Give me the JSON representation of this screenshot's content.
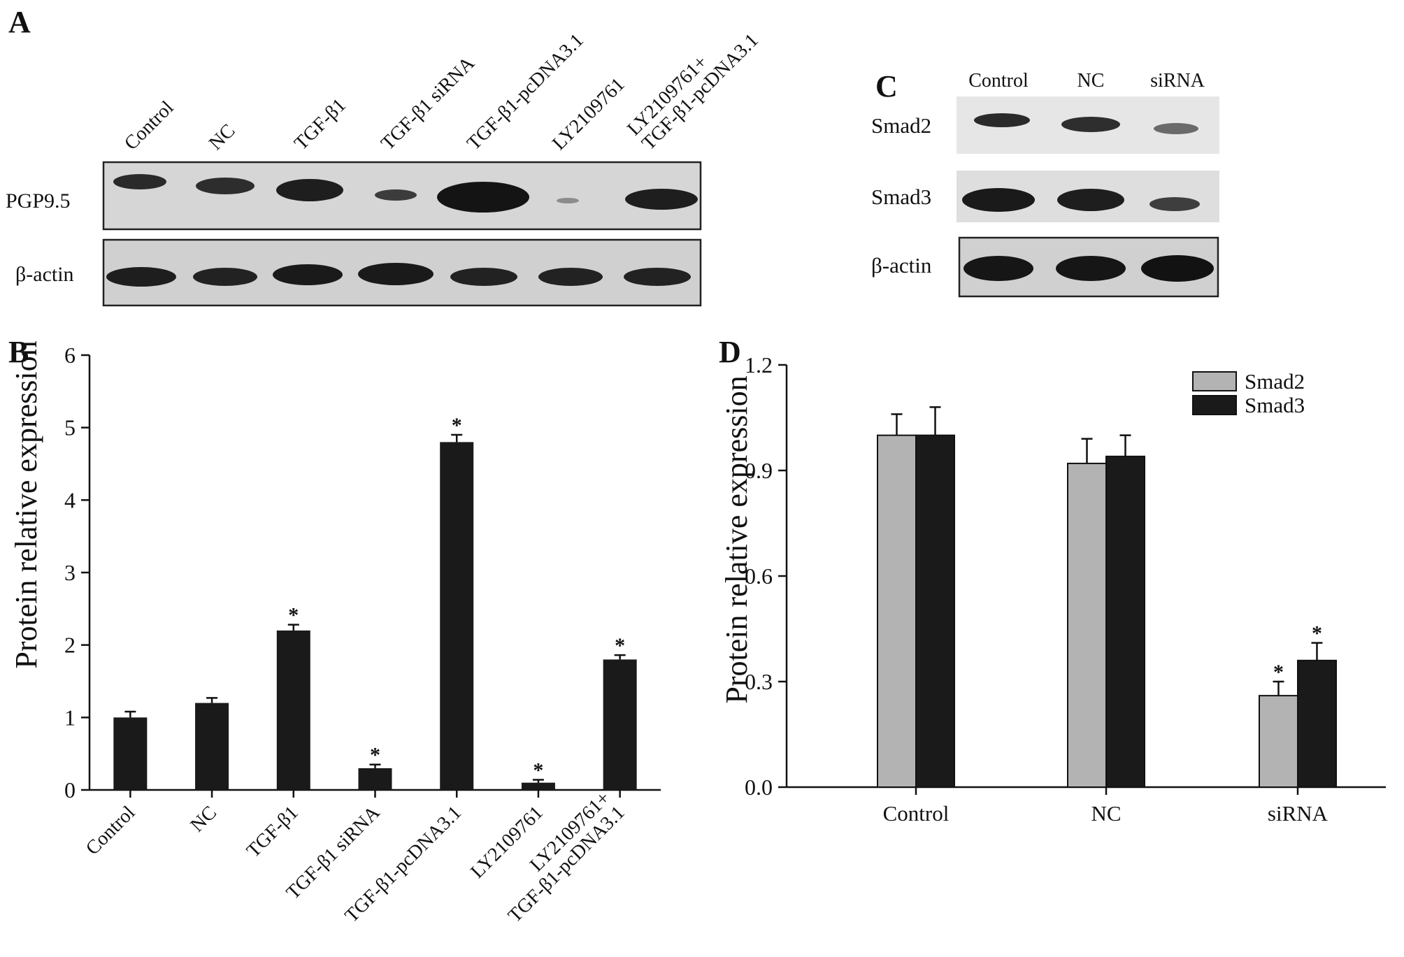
{
  "panels": {
    "A": {
      "letter": "A",
      "lanes": [
        "Control",
        "NC",
        "TGF-β1",
        "TGF-β1 siRNA",
        "TGF-β1-pcDNA3.1",
        "LY2109761",
        [
          "LY2109761+",
          "TGF-β1-pcDNA3.1"
        ]
      ],
      "rows": [
        "PGP9.5",
        "β-actin"
      ]
    },
    "C": {
      "letter": "C",
      "lanes": [
        "Control",
        "NC",
        "siRNA"
      ],
      "rows": [
        "Smad2",
        "Smad3",
        "β-actin"
      ]
    }
  },
  "chart_data": [
    {
      "panel": "B",
      "type": "bar",
      "ylabel": "Protein relative expression",
      "categories": [
        "Control",
        "NC",
        "TGF-β1",
        "TGF-β1 siRNA",
        "TGF-β1-pcDNA3.1",
        "LY2109761",
        [
          "LY2109761+",
          "TGF-β1-pcDNA3.1"
        ]
      ],
      "values": [
        1.0,
        1.2,
        2.2,
        0.3,
        4.8,
        0.1,
        1.8
      ],
      "errors": [
        0.08,
        0.07,
        0.08,
        0.05,
        0.1,
        0.04,
        0.06
      ],
      "significant": [
        false,
        false,
        true,
        true,
        true,
        true,
        true
      ],
      "significance_marker": "*",
      "ylim": [
        0,
        6
      ],
      "yticks": [
        "0",
        "1",
        "2",
        "3",
        "4",
        "5",
        "6"
      ],
      "bar_color": "#1a1a1a"
    },
    {
      "panel": "D",
      "type": "bar",
      "ylabel": "Protein relative expression",
      "categories": [
        "Control",
        "NC",
        "siRNA"
      ],
      "series": [
        {
          "name": "Smad2",
          "values": [
            1.0,
            0.92,
            0.26
          ],
          "errors": [
            0.06,
            0.07,
            0.04
          ],
          "significant": [
            false,
            false,
            true
          ],
          "color": "#b3b3b3"
        },
        {
          "name": "Smad3",
          "values": [
            1.0,
            0.94,
            0.36
          ],
          "errors": [
            0.08,
            0.06,
            0.05
          ],
          "significant": [
            false,
            false,
            true
          ],
          "color": "#1a1a1a"
        }
      ],
      "significance_marker": "*",
      "ylim": [
        0,
        1.2
      ],
      "yticks": [
        "0.0",
        "0.3",
        "0.6",
        "0.9",
        "1.2"
      ],
      "legend": "top-right"
    }
  ]
}
